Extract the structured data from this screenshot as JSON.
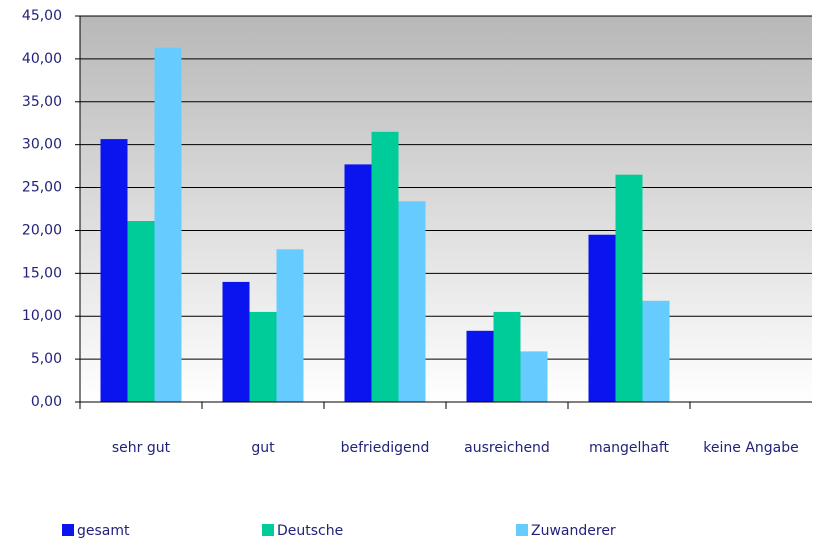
{
  "chart_data": {
    "type": "bar",
    "categories": [
      "sehr gut",
      "gut",
      "befriedigend",
      "ausreichend",
      "mangelhaft",
      "keine Angabe"
    ],
    "series": [
      {
        "name": "gesamt",
        "color": "#0a14ee",
        "values": [
          30.65,
          14.0,
          27.7,
          8.3,
          19.5,
          0
        ]
      },
      {
        "name": "Deutsche",
        "color": "#00cc99",
        "values": [
          21.1,
          10.5,
          31.5,
          10.5,
          26.5,
          0
        ]
      },
      {
        "name": "Zuwanderer",
        "color": "#66ccff",
        "values": [
          41.3,
          17.8,
          23.4,
          5.9,
          11.8,
          0
        ]
      }
    ],
    "ylim": [
      0,
      45
    ],
    "yticks": [
      {
        "value": 0,
        "label": "0,00"
      },
      {
        "value": 5,
        "label": "5,00"
      },
      {
        "value": 10,
        "label": "10,00"
      },
      {
        "value": 15,
        "label": "15,00"
      },
      {
        "value": 20,
        "label": "20,00"
      },
      {
        "value": 25,
        "label": "25,00"
      },
      {
        "value": 30,
        "label": "30,00"
      },
      {
        "value": 35,
        "label": "35,00"
      },
      {
        "value": 40,
        "label": "40,00"
      },
      {
        "value": 45,
        "label": "45,00"
      }
    ],
    "grid": true
  }
}
